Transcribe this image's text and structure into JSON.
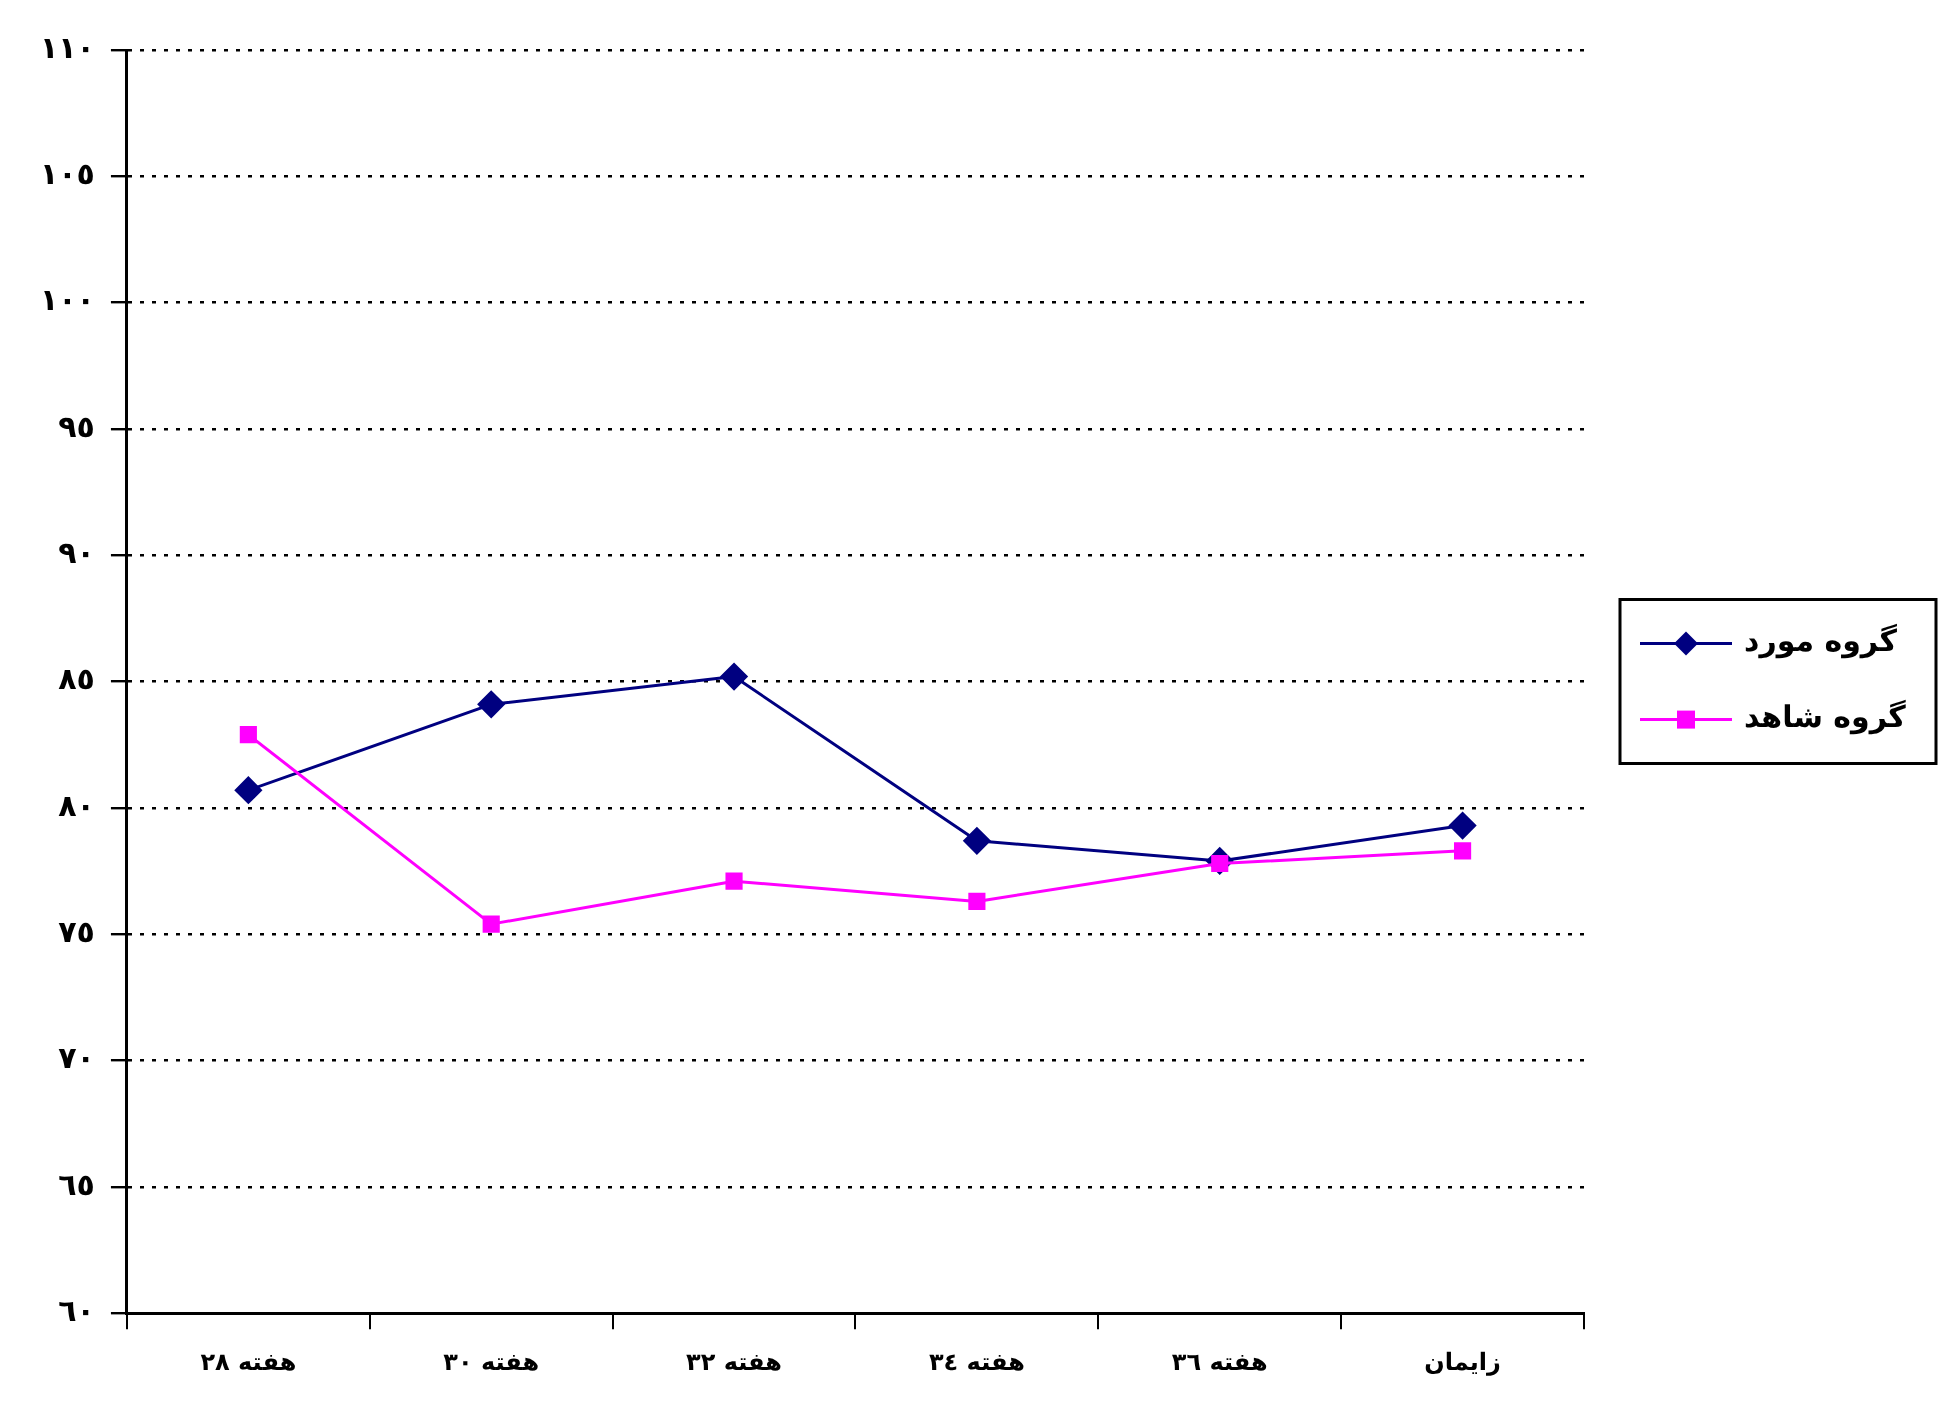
{
  "chart_data": {
    "type": "line",
    "categories": [
      "هفته ٢٨",
      "هفته ٣٠",
      "هفته ٣٢",
      "هفته ٣٤",
      "هفته ٣٦",
      "زایمان"
    ],
    "series": [
      {
        "name": "گروه مورد",
        "color": "#000080",
        "marker": "diamond",
        "values": [
          80.7,
          84.1,
          85.2,
          78.7,
          77.9,
          79.3
        ]
      },
      {
        "name": "گروه شاهد",
        "color": "#ff00ff",
        "marker": "square",
        "values": [
          82.9,
          75.4,
          77.1,
          76.3,
          77.8,
          78.3
        ]
      }
    ],
    "ylim": [
      60,
      110
    ],
    "yticks": [
      {
        "value": 60,
        "label": "٦٠"
      },
      {
        "value": 65,
        "label": "٦٥"
      },
      {
        "value": 70,
        "label": "٧٠"
      },
      {
        "value": 75,
        "label": "٧٥"
      },
      {
        "value": 80,
        "label": "٨٠"
      },
      {
        "value": 85,
        "label": "٨٥"
      },
      {
        "value": 90,
        "label": "٩٠"
      },
      {
        "value": 95,
        "label": "٩٥"
      },
      {
        "value": 100,
        "label": "١٠٠"
      },
      {
        "value": 105,
        "label": "١٠٥"
      },
      {
        "value": 110,
        "label": "١١٠"
      }
    ],
    "grid": "y",
    "legend": "right",
    "line_style": "solid"
  }
}
